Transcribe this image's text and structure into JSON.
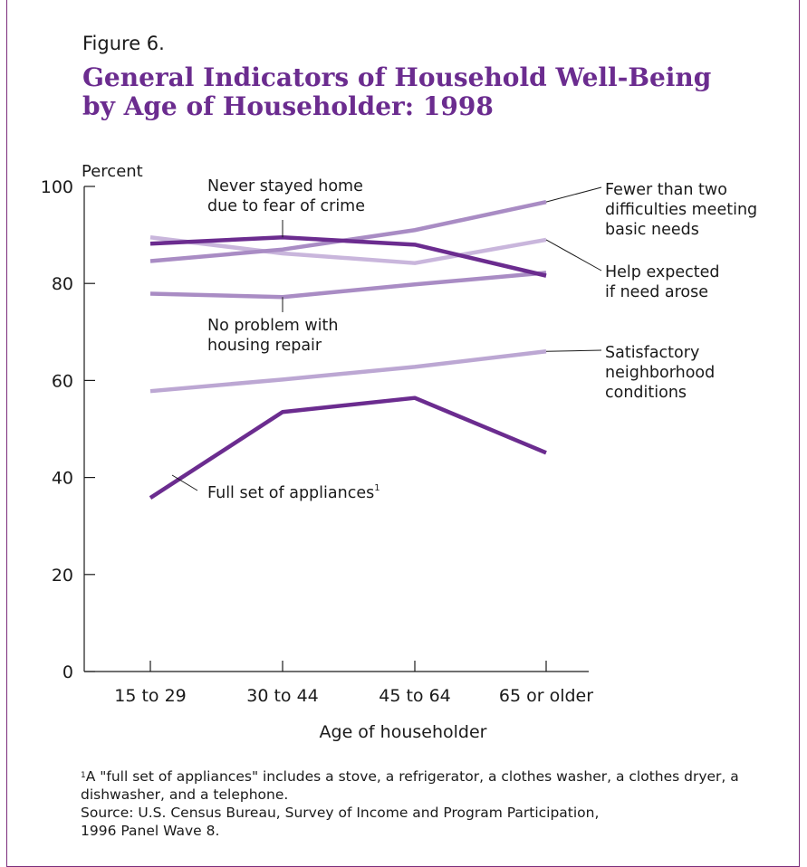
{
  "figure_label": "Figure 6.",
  "title_line1": "General Indicators of Household Well-Being",
  "title_line2": "by Age of Householder:  1998",
  "footnote": {
    "marker": "1",
    "text": "A \"full set of appliances\" includes a stove, a refrigerator, a clothes washer, a clothes dryer, a dishwasher, and a telephone.",
    "source_line1": "Source: U.S. Census Bureau, Survey of Income and Program Participation,",
    "source_line2": "1996 Panel Wave 8."
  },
  "chart_data": {
    "type": "line",
    "title": "General Indicators of Household Well-Being by Age of Householder: 1998",
    "xlabel": "Age of householder",
    "ylabel": "Percent",
    "categories": [
      "15 to 29",
      "30 to 44",
      "45 to 64",
      "65 or older"
    ],
    "ylim": [
      0,
      100
    ],
    "yticks": [
      0,
      20,
      40,
      60,
      80,
      100
    ],
    "grid": false,
    "legend": "direct labels",
    "series": [
      {
        "name": "Fewer than two difficulties meeting basic needs",
        "label_lines": [
          "Fewer than two",
          "difficulties meeting",
          "basic needs"
        ],
        "color": "#a98cc4",
        "values": [
          84.6,
          87.0,
          91.0,
          96.8
        ]
      },
      {
        "name": "Help expected if need arose",
        "label_lines": [
          "Help expected",
          "if need arose"
        ],
        "color": "#c9b6dc",
        "values": [
          89.5,
          86.2,
          84.2,
          89.0
        ]
      },
      {
        "name": "Never stayed home due to fear of crime",
        "label_lines": [
          "Never stayed home",
          "due to fear of crime"
        ],
        "color": "#6b2c8f",
        "values": [
          88.2,
          89.5,
          88.0,
          81.6
        ]
      },
      {
        "name": "No problem with housing repair",
        "label_lines": [
          "No problem with",
          "housing repair"
        ],
        "color": "#a98cc4",
        "values": [
          77.9,
          77.2,
          79.8,
          82.2
        ]
      },
      {
        "name": "Satisfactory neighborhood conditions",
        "label_lines": [
          "Satisfactory",
          "neighborhood",
          "conditions"
        ],
        "color": "#bca7d3",
        "values": [
          57.8,
          60.2,
          62.8,
          66.0
        ]
      },
      {
        "name": "Full set of appliances",
        "label_lines": [
          "Full set of appliances"
        ],
        "label_sup": "1",
        "color": "#6b2c8f",
        "values": [
          35.8,
          53.5,
          56.4,
          45.1
        ]
      }
    ]
  }
}
